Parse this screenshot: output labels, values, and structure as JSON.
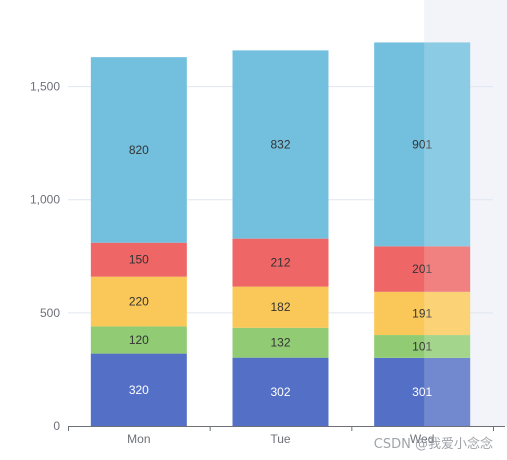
{
  "chart_data": {
    "type": "bar",
    "stacked": true,
    "categories": [
      "Mon",
      "Tue",
      "Wed"
    ],
    "series": [
      {
        "color": "#5470c6",
        "values": [
          320,
          302,
          301
        ]
      },
      {
        "color": "#91cc75",
        "values": [
          120,
          132,
          101
        ]
      },
      {
        "color": "#fac858",
        "values": [
          220,
          182,
          191
        ]
      },
      {
        "color": "#ee6666",
        "values": [
          150,
          212,
          201
        ]
      },
      {
        "color": "#73c0de",
        "values": [
          820,
          832,
          901
        ]
      }
    ],
    "ylim": [
      0,
      1750
    ],
    "yticks": [
      "0",
      "500",
      "1,000",
      "1,500"
    ],
    "ytick_values": [
      0,
      500,
      1000,
      1500
    ],
    "grid": true,
    "hover_category": "Wed"
  },
  "watermark": {
    "text": "CSDN @我爱小念念"
  }
}
